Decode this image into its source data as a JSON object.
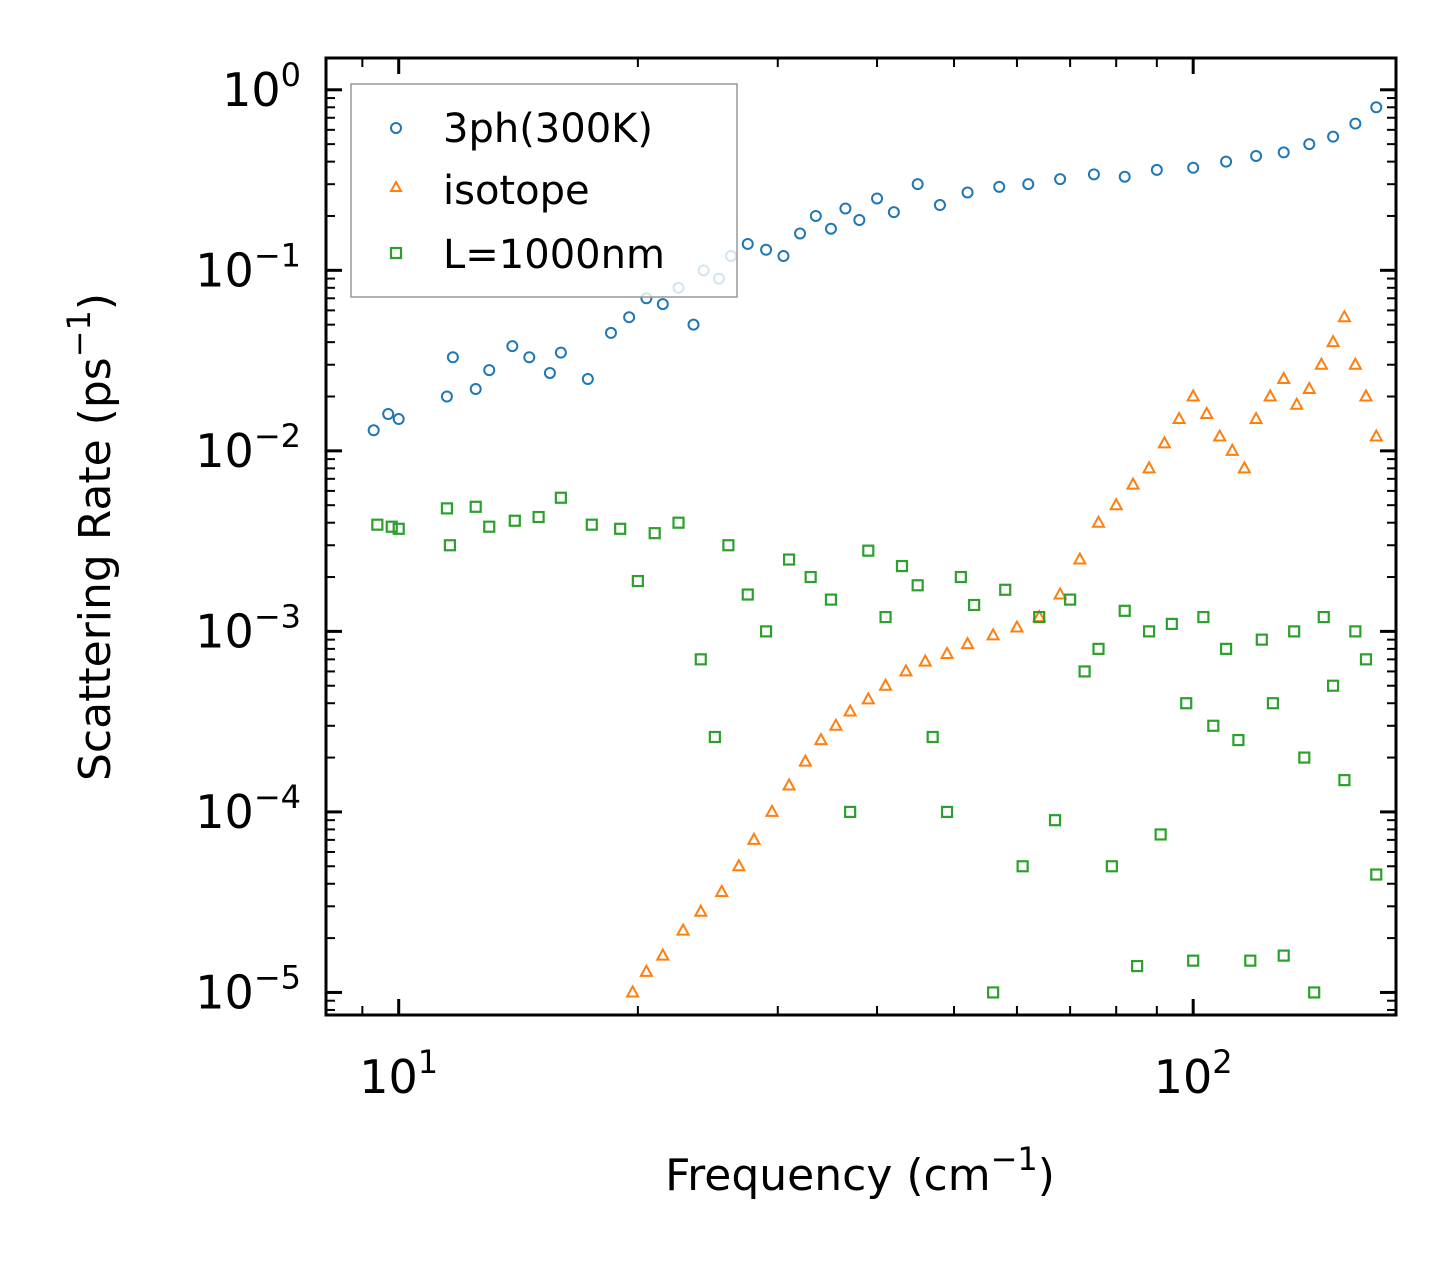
{
  "chart_data": {
    "type": "scatter",
    "xlabel": "Frequency (cm",
    "xlabel_sup": "−1",
    "xlabel_close": ")",
    "ylabel": "Scattering Rate (ps",
    "ylabel_sup": "−1",
    "ylabel_close": ")",
    "xscale": "log",
    "yscale": "log",
    "xlim": [
      8.1,
      180
    ],
    "ylim": [
      7.5e-06,
      1.5
    ],
    "legend_position": "top-left",
    "x_ticks": [
      {
        "base": "10",
        "exp": "1",
        "value": 10
      },
      {
        "base": "10",
        "exp": "2",
        "value": 100
      }
    ],
    "y_ticks": [
      {
        "base": "10",
        "exp": "0",
        "value": 1
      },
      {
        "base": "10",
        "exp": "−1",
        "value": 0.1
      },
      {
        "base": "10",
        "exp": "−2",
        "value": 0.01
      },
      {
        "base": "10",
        "exp": "−3",
        "value": 0.001
      },
      {
        "base": "10",
        "exp": "−4",
        "value": 0.0001
      },
      {
        "base": "10",
        "exp": "−5",
        "value": 1e-05
      }
    ],
    "series": [
      {
        "name": "3ph(300K)",
        "marker": "circle",
        "color": "#1f77b4",
        "points": [
          [
            9.3,
            0.013
          ],
          [
            9.7,
            0.016
          ],
          [
            10,
            0.015
          ],
          [
            11.5,
            0.02
          ],
          [
            11.7,
            0.033
          ],
          [
            12.5,
            0.022
          ],
          [
            13,
            0.028
          ],
          [
            13.9,
            0.038
          ],
          [
            14.6,
            0.033
          ],
          [
            15.5,
            0.027
          ],
          [
            16,
            0.035
          ],
          [
            17.3,
            0.025
          ],
          [
            18.5,
            0.045
          ],
          [
            19.5,
            0.055
          ],
          [
            20.5,
            0.07
          ],
          [
            21.5,
            0.065
          ],
          [
            22.5,
            0.08
          ],
          [
            23.5,
            0.05
          ],
          [
            24.2,
            0.1
          ],
          [
            25.3,
            0.09
          ],
          [
            26.2,
            0.12
          ],
          [
            27.5,
            0.14
          ],
          [
            29,
            0.13
          ],
          [
            30.5,
            0.12
          ],
          [
            32,
            0.16
          ],
          [
            33.5,
            0.2
          ],
          [
            35,
            0.17
          ],
          [
            36.5,
            0.22
          ],
          [
            38,
            0.19
          ],
          [
            40,
            0.25
          ],
          [
            42,
            0.21
          ],
          [
            45,
            0.3
          ],
          [
            48,
            0.23
          ],
          [
            52,
            0.27
          ],
          [
            57,
            0.29
          ],
          [
            62,
            0.3
          ],
          [
            68,
            0.32
          ],
          [
            75,
            0.34
          ],
          [
            82,
            0.33
          ],
          [
            90,
            0.36
          ],
          [
            100,
            0.37
          ],
          [
            110,
            0.4
          ],
          [
            120,
            0.43
          ],
          [
            130,
            0.45
          ],
          [
            140,
            0.5
          ],
          [
            150,
            0.55
          ],
          [
            160,
            0.65
          ],
          [
            170,
            0.8
          ]
        ]
      },
      {
        "name": "isotope",
        "marker": "triangle",
        "color": "#ff7f0e",
        "points": [
          [
            19.7,
            1e-05
          ],
          [
            20.5,
            1.3e-05
          ],
          [
            21.5,
            1.6e-05
          ],
          [
            22.8,
            2.2e-05
          ],
          [
            24,
            2.8e-05
          ],
          [
            25.5,
            3.6e-05
          ],
          [
            26.8,
            5e-05
          ],
          [
            28,
            7e-05
          ],
          [
            29.5,
            0.0001
          ],
          [
            31,
            0.00014
          ],
          [
            32.5,
            0.00019
          ],
          [
            34,
            0.00025
          ],
          [
            35.5,
            0.0003
          ],
          [
            37,
            0.00036
          ],
          [
            39,
            0.00042
          ],
          [
            41,
            0.0005
          ],
          [
            43.5,
            0.0006
          ],
          [
            46,
            0.00068
          ],
          [
            49,
            0.00075
          ],
          [
            52,
            0.00085
          ],
          [
            56,
            0.00095
          ],
          [
            60,
            0.00105
          ],
          [
            64,
            0.0012
          ],
          [
            68,
            0.0016
          ],
          [
            72,
            0.0025
          ],
          [
            76,
            0.004
          ],
          [
            80,
            0.005
          ],
          [
            84,
            0.0065
          ],
          [
            88,
            0.008
          ],
          [
            92,
            0.011
          ],
          [
            96,
            0.015
          ],
          [
            100,
            0.02
          ],
          [
            104,
            0.016
          ],
          [
            108,
            0.012
          ],
          [
            112,
            0.01
          ],
          [
            116,
            0.008
          ],
          [
            120,
            0.015
          ],
          [
            125,
            0.02
          ],
          [
            130,
            0.025
          ],
          [
            135,
            0.018
          ],
          [
            140,
            0.022
          ],
          [
            145,
            0.03
          ],
          [
            150,
            0.04
          ],
          [
            155,
            0.055
          ],
          [
            160,
            0.03
          ],
          [
            165,
            0.02
          ],
          [
            170,
            0.012
          ]
        ]
      },
      {
        "name": "L=1000nm",
        "marker": "square",
        "color": "#2ca02c",
        "points": [
          [
            9.4,
            0.0039
          ],
          [
            9.8,
            0.0038
          ],
          [
            10,
            0.0037
          ],
          [
            11.5,
            0.0048
          ],
          [
            11.6,
            0.003
          ],
          [
            12.5,
            0.0049
          ],
          [
            13,
            0.0038
          ],
          [
            14,
            0.0041
          ],
          [
            15,
            0.0043
          ],
          [
            16,
            0.0055
          ],
          [
            17.5,
            0.0039
          ],
          [
            19,
            0.0037
          ],
          [
            20,
            0.0019
          ],
          [
            21,
            0.0035
          ],
          [
            22.5,
            0.004
          ],
          [
            24,
            0.0007
          ],
          [
            25,
            0.00026
          ],
          [
            26,
            0.003
          ],
          [
            27.5,
            0.0016
          ],
          [
            29,
            0.001
          ],
          [
            31,
            0.0025
          ],
          [
            33,
            0.002
          ],
          [
            35,
            0.0015
          ],
          [
            37,
            0.0001
          ],
          [
            39,
            0.0028
          ],
          [
            41,
            0.0012
          ],
          [
            43,
            0.0023
          ],
          [
            45,
            0.0018
          ],
          [
            47,
            0.00026
          ],
          [
            49,
            0.0001
          ],
          [
            51,
            0.002
          ],
          [
            53,
            0.0014
          ],
          [
            56,
            1e-05
          ],
          [
            58,
            0.0017
          ],
          [
            61,
            5e-05
          ],
          [
            64,
            0.0012
          ],
          [
            67,
            9e-05
          ],
          [
            70,
            0.0015
          ],
          [
            73,
            0.0006
          ],
          [
            76,
            0.0008
          ],
          [
            79,
            5e-05
          ],
          [
            82,
            0.0013
          ],
          [
            85,
            1.4e-05
          ],
          [
            88,
            0.001
          ],
          [
            91,
            7.5e-05
          ],
          [
            94,
            0.0011
          ],
          [
            98,
            0.0004
          ],
          [
            100,
            1.5e-05
          ],
          [
            103,
            0.0012
          ],
          [
            106,
            0.0003
          ],
          [
            110,
            0.0008
          ],
          [
            114,
            0.00025
          ],
          [
            118,
            1.5e-05
          ],
          [
            122,
            0.0009
          ],
          [
            126,
            0.0004
          ],
          [
            130,
            1.6e-05
          ],
          [
            134,
            0.001
          ],
          [
            138,
            0.0002
          ],
          [
            142,
            1e-05
          ],
          [
            146,
            0.0012
          ],
          [
            150,
            0.0005
          ],
          [
            155,
            0.00015
          ],
          [
            160,
            0.001
          ],
          [
            165,
            0.0007
          ],
          [
            170,
            4.5e-05
          ]
        ]
      }
    ]
  }
}
